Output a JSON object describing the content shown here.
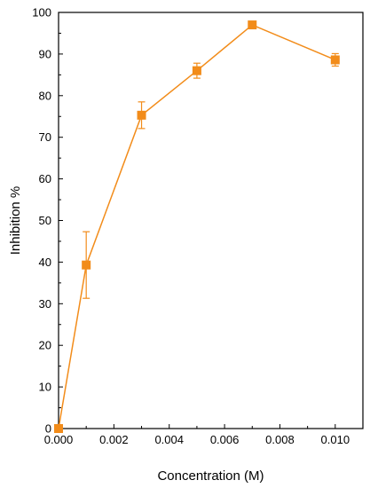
{
  "chart_data": {
    "type": "line",
    "title": "",
    "xlabel": "Concentration (M)",
    "ylabel": "Inhibition %",
    "xlim": [
      0,
      0.011
    ],
    "ylim": [
      0,
      100
    ],
    "x_ticks": [
      0.0,
      0.002,
      0.004,
      0.006,
      0.008,
      0.01
    ],
    "x_tick_labels": [
      "0.000",
      "0.002",
      "0.004",
      "0.006",
      "0.008",
      "0.010"
    ],
    "y_ticks": [
      0,
      10,
      20,
      30,
      40,
      50,
      60,
      70,
      80,
      90,
      100
    ],
    "y_tick_labels": [
      "0",
      "10",
      "20",
      "30",
      "40",
      "50",
      "60",
      "70",
      "80",
      "90",
      "100"
    ],
    "grid": false,
    "legend": "none",
    "color": "#F28C1A",
    "series": [
      {
        "x": [
          0.0,
          0.001,
          0.003,
          0.005,
          0.007,
          0.01
        ],
        "y": [
          0,
          39.3,
          75.3,
          86.0,
          97.0,
          88.6
        ],
        "error": [
          0,
          8.0,
          3.2,
          1.8,
          0.6,
          1.5
        ],
        "marker": "square"
      }
    ]
  }
}
